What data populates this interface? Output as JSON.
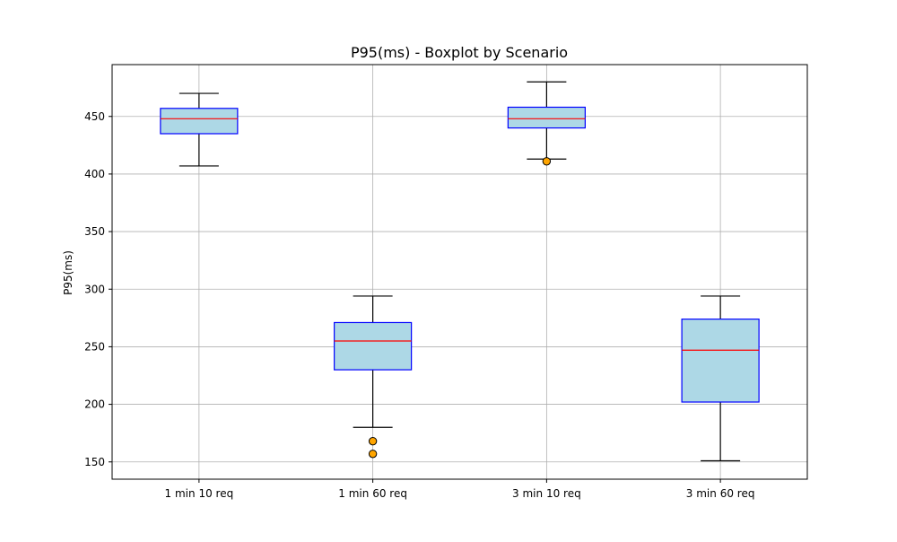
{
  "chart_data": {
    "type": "boxplot",
    "title": "P95(ms) - Boxplot by Scenario",
    "xlabel": "",
    "ylabel": "P95(ms)",
    "ylim": [
      135,
      495
    ],
    "yticks": [
      150,
      200,
      250,
      300,
      350,
      400,
      450
    ],
    "categories": [
      "1 min 10 req",
      "1 min 60 req",
      "3 min 10 req",
      "3 min 60 req"
    ],
    "series": [
      {
        "whisker_low": 407,
        "q1": 435,
        "median": 448,
        "q3": 457,
        "whisker_high": 470,
        "outliers": []
      },
      {
        "whisker_low": 180,
        "q1": 230,
        "median": 255,
        "q3": 271,
        "whisker_high": 294,
        "outliers": [
          168,
          157
        ]
      },
      {
        "whisker_low": 413,
        "q1": 440,
        "median": 448,
        "q3": 458,
        "whisker_high": 480,
        "outliers": [
          411
        ]
      },
      {
        "whisker_low": 151,
        "q1": 202,
        "median": 247,
        "q3": 274,
        "whisker_high": 294,
        "outliers": []
      }
    ],
    "grid": true,
    "colors": {
      "box_fill": "#add8e6",
      "box_edge": "#0000ff",
      "median": "#ff0000",
      "whisker": "#000000",
      "outlier_fill": "#ffa500",
      "outlier_edge": "#000000",
      "grid": "#b0b0b0"
    }
  }
}
